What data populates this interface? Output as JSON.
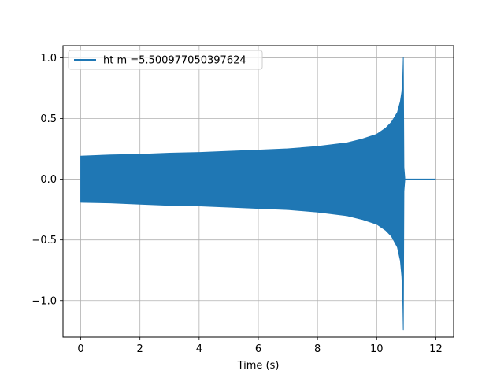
{
  "chart_data": {
    "type": "line",
    "title": "",
    "xlabel": "Time (s)",
    "ylabel": "",
    "xlim": [
      -0.6,
      12.6
    ],
    "ylim": [
      -1.3,
      1.1
    ],
    "x_ticks": [
      0,
      2,
      4,
      6,
      8,
      10,
      12
    ],
    "y_ticks": [
      -1.0,
      -0.5,
      0.0,
      0.5,
      1.0
    ],
    "x_tick_labels": [
      "0",
      "2",
      "4",
      "6",
      "8",
      "10",
      "12"
    ],
    "y_tick_labels": [
      "−1.0",
      "−0.5",
      "0.0",
      "0.5",
      "1.0"
    ],
    "grid": true,
    "legend_position": "top-left",
    "series": [
      {
        "name": "ht m =5.500977050397624",
        "color": "#1f77b4",
        "envelope": {
          "time": [
            0.0,
            1.0,
            2.0,
            3.0,
            4.0,
            5.0,
            6.0,
            7.0,
            8.0,
            9.0,
            9.5,
            10.0,
            10.3,
            10.5,
            10.7,
            10.8,
            10.85,
            10.88,
            10.9,
            10.92,
            10.95,
            11.0,
            12.0
          ],
          "upper": [
            0.19,
            0.2,
            0.205,
            0.215,
            0.22,
            0.23,
            0.24,
            0.25,
            0.27,
            0.3,
            0.33,
            0.37,
            0.42,
            0.47,
            0.55,
            0.64,
            0.72,
            0.82,
            1.0,
            0.1,
            0.01,
            0.0,
            0.0
          ],
          "lower": [
            -0.19,
            -0.195,
            -0.205,
            -0.215,
            -0.22,
            -0.23,
            -0.24,
            -0.25,
            -0.27,
            -0.3,
            -0.33,
            -0.37,
            -0.42,
            -0.47,
            -0.56,
            -0.67,
            -0.8,
            -0.95,
            -1.24,
            -0.1,
            -0.01,
            0.0,
            0.0
          ]
        }
      }
    ]
  }
}
